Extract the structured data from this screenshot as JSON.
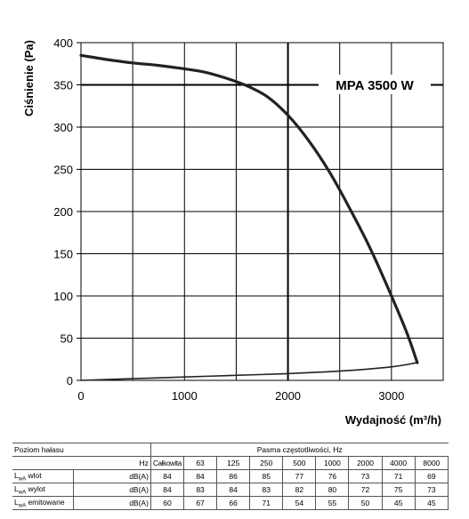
{
  "chart_data": {
    "type": "line",
    "title": "MPA 3500 W",
    "xlabel": "Wydajność (m³/h)",
    "ylabel": "Ciśnienie (Pa)",
    "xlim": [
      0,
      3500
    ],
    "ylim": [
      0,
      400
    ],
    "xticks": [
      0,
      1000,
      2000,
      3000
    ],
    "yticks": [
      0,
      50,
      100,
      150,
      200,
      250,
      300,
      350,
      400
    ],
    "grid": true,
    "series": [
      {
        "values": [
          {
            "x": 0,
            "y": 385
          },
          {
            "x": 250,
            "y": 380
          },
          {
            "x": 500,
            "y": 376
          },
          {
            "x": 750,
            "y": 373
          },
          {
            "x": 1000,
            "y": 369
          },
          {
            "x": 1200,
            "y": 365
          },
          {
            "x": 1400,
            "y": 358
          },
          {
            "x": 1600,
            "y": 349
          },
          {
            "x": 1800,
            "y": 336
          },
          {
            "x": 2000,
            "y": 314
          },
          {
            "x": 2200,
            "y": 284
          },
          {
            "x": 2400,
            "y": 247
          },
          {
            "x": 2600,
            "y": 203
          },
          {
            "x": 2800,
            "y": 155
          },
          {
            "x": 3000,
            "y": 100
          },
          {
            "x": 3150,
            "y": 56
          },
          {
            "x": 3250,
            "y": 21
          }
        ]
      },
      {
        "values": [
          {
            "x": 0,
            "y": 0
          },
          {
            "x": 500,
            "y": 2
          },
          {
            "x": 1000,
            "y": 4
          },
          {
            "x": 1500,
            "y": 6
          },
          {
            "x": 2000,
            "y": 8
          },
          {
            "x": 2500,
            "y": 11
          },
          {
            "x": 3000,
            "y": 16
          },
          {
            "x": 3250,
            "y": 21
          }
        ]
      }
    ],
    "annotations": [
      {
        "text": "MPA 3500 W",
        "y": 350
      }
    ]
  },
  "noise_table": {
    "title": "Poziom hałasu",
    "bands_title": "Pasma częstotliwości, Hz",
    "hz_label": "Hz",
    "total_label": "Całkowita",
    "bands": [
      "63",
      "125",
      "250",
      "500",
      "1000",
      "2000",
      "4000",
      "8000"
    ],
    "rows": [
      {
        "label": "L",
        "sub": "wA",
        "suffix": " wlot",
        "unit": "dB(A)",
        "total": "84",
        "values": [
          "84",
          "86",
          "85",
          "77",
          "76",
          "73",
          "71",
          "69"
        ]
      },
      {
        "label": "L",
        "sub": "wA",
        "suffix": " wylot",
        "unit": "dB(A)",
        "total": "84",
        "values": [
          "83",
          "84",
          "83",
          "82",
          "80",
          "72",
          "75",
          "73"
        ]
      },
      {
        "label": "L",
        "sub": "wA",
        "suffix": " emitowane",
        "unit": "dB(A)",
        "total": "60",
        "values": [
          "67",
          "66",
          "71",
          "54",
          "55",
          "50",
          "45",
          "45"
        ]
      }
    ]
  }
}
